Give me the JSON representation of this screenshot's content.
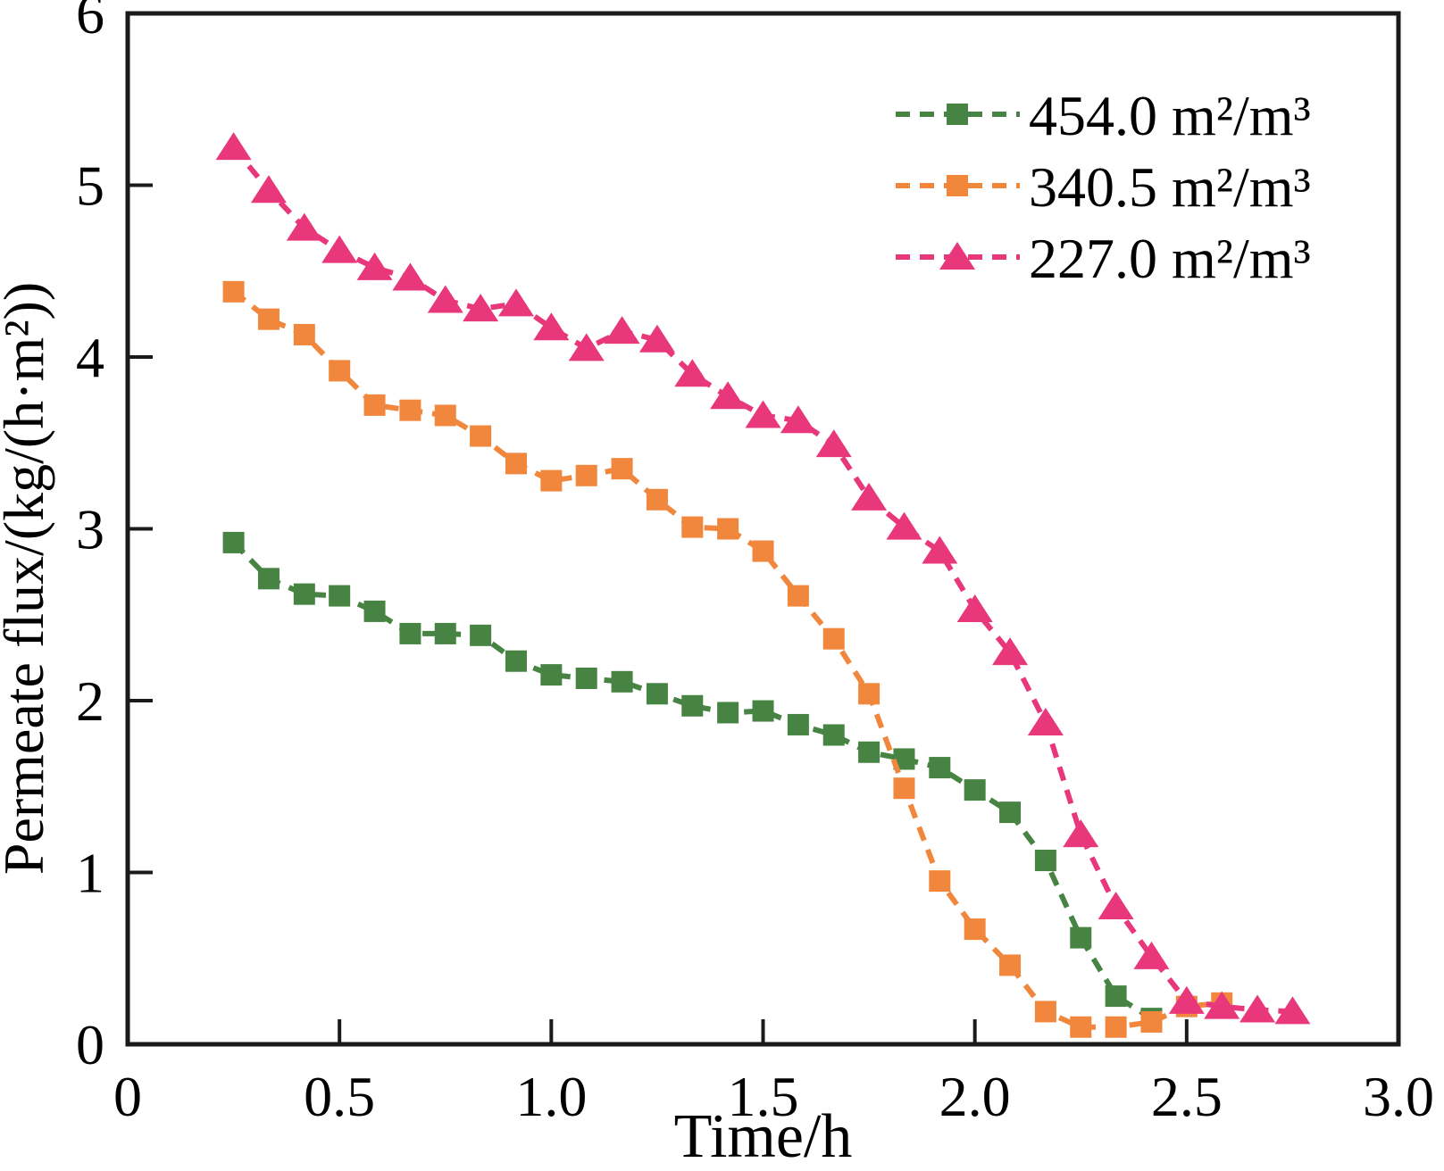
{
  "figure": {
    "background": "#ffffff",
    "axis_color": "#1a1a1a",
    "text_color": "#000000"
  },
  "chart_data": {
    "type": "line",
    "title": "",
    "xlabel": "Time/h",
    "ylabel": "Permeate flux/(kg/(h·m²))",
    "xlim": [
      0,
      3
    ],
    "ylim": [
      0,
      6
    ],
    "grid": false,
    "legend_position": "upper right",
    "xticks": {
      "values": [
        0,
        0.5,
        1.0,
        1.5,
        2.0,
        2.5,
        3.0
      ],
      "labels": [
        "0",
        "0.5",
        "1.0",
        "1.5",
        "2.0",
        "2.5",
        "3.0"
      ]
    },
    "yticks": {
      "values": [
        0,
        1,
        2,
        3,
        4,
        5,
        6
      ],
      "labels": [
        "0",
        "1",
        "2",
        "3",
        "4",
        "5",
        "6"
      ]
    },
    "series": [
      {
        "name": "454.0 m²/m³",
        "color": "#478343",
        "marker": "square",
        "line_style": "dashed",
        "points": [
          [
            0.25,
            2.92
          ],
          [
            0.333,
            2.71
          ],
          [
            0.417,
            2.62
          ],
          [
            0.5,
            2.61
          ],
          [
            0.583,
            2.52
          ],
          [
            0.667,
            2.39
          ],
          [
            0.75,
            2.39
          ],
          [
            0.833,
            2.38
          ],
          [
            0.917,
            2.23
          ],
          [
            1.0,
            2.15
          ],
          [
            1.083,
            2.13
          ],
          [
            1.167,
            2.11
          ],
          [
            1.25,
            2.04
          ],
          [
            1.333,
            1.97
          ],
          [
            1.417,
            1.93
          ],
          [
            1.5,
            1.94
          ],
          [
            1.583,
            1.86
          ],
          [
            1.667,
            1.8
          ],
          [
            1.75,
            1.7
          ],
          [
            1.833,
            1.66
          ],
          [
            1.917,
            1.61
          ],
          [
            2.0,
            1.48
          ],
          [
            2.083,
            1.35
          ],
          [
            2.167,
            1.07
          ],
          [
            2.25,
            0.62
          ],
          [
            2.333,
            0.28
          ],
          [
            2.417,
            0.15
          ]
        ]
      },
      {
        "name": "340.5 m²/m³",
        "color": "#f0873c",
        "marker": "square",
        "line_style": "dashed",
        "points": [
          [
            0.25,
            4.38
          ],
          [
            0.333,
            4.22
          ],
          [
            0.417,
            4.13
          ],
          [
            0.5,
            3.92
          ],
          [
            0.583,
            3.72
          ],
          [
            0.667,
            3.69
          ],
          [
            0.75,
            3.66
          ],
          [
            0.833,
            3.54
          ],
          [
            0.917,
            3.38
          ],
          [
            1.0,
            3.28
          ],
          [
            1.083,
            3.31
          ],
          [
            1.167,
            3.35
          ],
          [
            1.25,
            3.17
          ],
          [
            1.333,
            3.01
          ],
          [
            1.417,
            3.0
          ],
          [
            1.5,
            2.87
          ],
          [
            1.583,
            2.61
          ],
          [
            1.667,
            2.36
          ],
          [
            1.75,
            2.04
          ],
          [
            1.833,
            1.49
          ],
          [
            1.917,
            0.95
          ],
          [
            2.0,
            0.67
          ],
          [
            2.083,
            0.46
          ],
          [
            2.167,
            0.19
          ],
          [
            2.25,
            0.1
          ],
          [
            2.333,
            0.1
          ],
          [
            2.417,
            0.13
          ],
          [
            2.5,
            0.22
          ],
          [
            2.583,
            0.24
          ]
        ]
      },
      {
        "name": "227.0 m²/m³",
        "color": "#e8377a",
        "marker": "triangle",
        "line_style": "dashed",
        "points": [
          [
            0.25,
            5.22
          ],
          [
            0.333,
            4.97
          ],
          [
            0.417,
            4.75
          ],
          [
            0.5,
            4.62
          ],
          [
            0.583,
            4.52
          ],
          [
            0.667,
            4.46
          ],
          [
            0.75,
            4.33
          ],
          [
            0.833,
            4.28
          ],
          [
            0.917,
            4.31
          ],
          [
            1.0,
            4.17
          ],
          [
            1.083,
            4.05
          ],
          [
            1.167,
            4.15
          ],
          [
            1.25,
            4.1
          ],
          [
            1.333,
            3.9
          ],
          [
            1.417,
            3.77
          ],
          [
            1.5,
            3.66
          ],
          [
            1.583,
            3.63
          ],
          [
            1.667,
            3.49
          ],
          [
            1.75,
            3.18
          ],
          [
            1.833,
            3.01
          ],
          [
            1.917,
            2.87
          ],
          [
            2.0,
            2.53
          ],
          [
            2.083,
            2.28
          ],
          [
            2.167,
            1.87
          ],
          [
            2.25,
            1.22
          ],
          [
            2.333,
            0.8
          ],
          [
            2.417,
            0.51
          ],
          [
            2.5,
            0.25
          ],
          [
            2.583,
            0.22
          ],
          [
            2.667,
            0.2
          ],
          [
            2.75,
            0.19
          ]
        ]
      }
    ]
  }
}
